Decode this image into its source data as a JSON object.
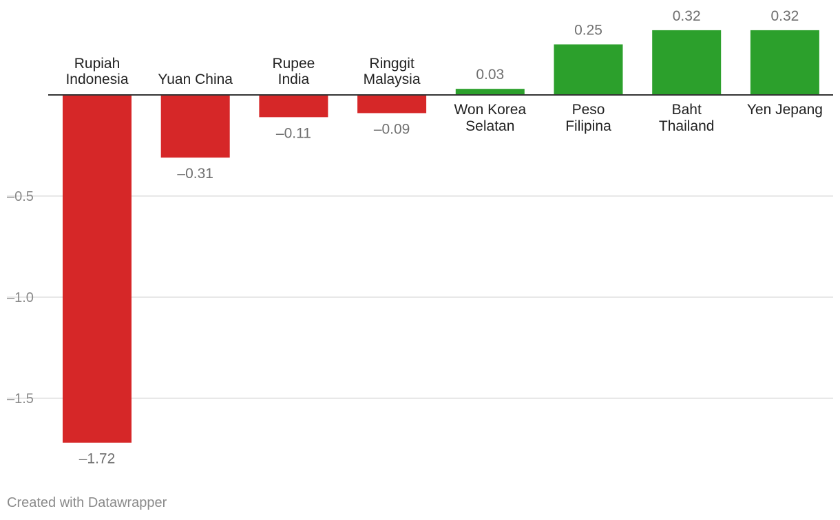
{
  "chart_data": {
    "type": "bar",
    "categories": [
      [
        "Rupiah",
        "Indonesia"
      ],
      [
        "Yuan China"
      ],
      [
        "Rupee",
        "India"
      ],
      [
        "Ringgit",
        "Malaysia"
      ],
      [
        "Won Korea",
        "Selatan"
      ],
      [
        "Peso",
        "Filipina"
      ],
      [
        "Baht",
        "Thailand"
      ],
      [
        "Yen Jepang"
      ]
    ],
    "values": [
      -1.72,
      -0.31,
      -0.11,
      -0.09,
      0.03,
      0.25,
      0.32,
      0.32
    ],
    "value_labels": [
      "–1.72",
      "–0.31",
      "–0.11",
      "–0.09",
      "0.03",
      "0.25",
      "0.32",
      "0.32"
    ],
    "yticks": [
      {
        "value": -0.5,
        "label": "–0.5"
      },
      {
        "value": -1.0,
        "label": "–1.0"
      },
      {
        "value": -1.5,
        "label": "–1.5"
      }
    ],
    "ylim": [
      -1.79,
      0.47
    ],
    "grid": true,
    "colors": {
      "negative": "#d62728",
      "positive": "#2ca02c",
      "grid": "#e0e0e0",
      "axis": "#333333",
      "tick_text": "#8a8a8a",
      "value_text": "#6f6f6f",
      "category_text": "#222222"
    }
  },
  "footer": {
    "credit": "Created with Datawrapper"
  }
}
